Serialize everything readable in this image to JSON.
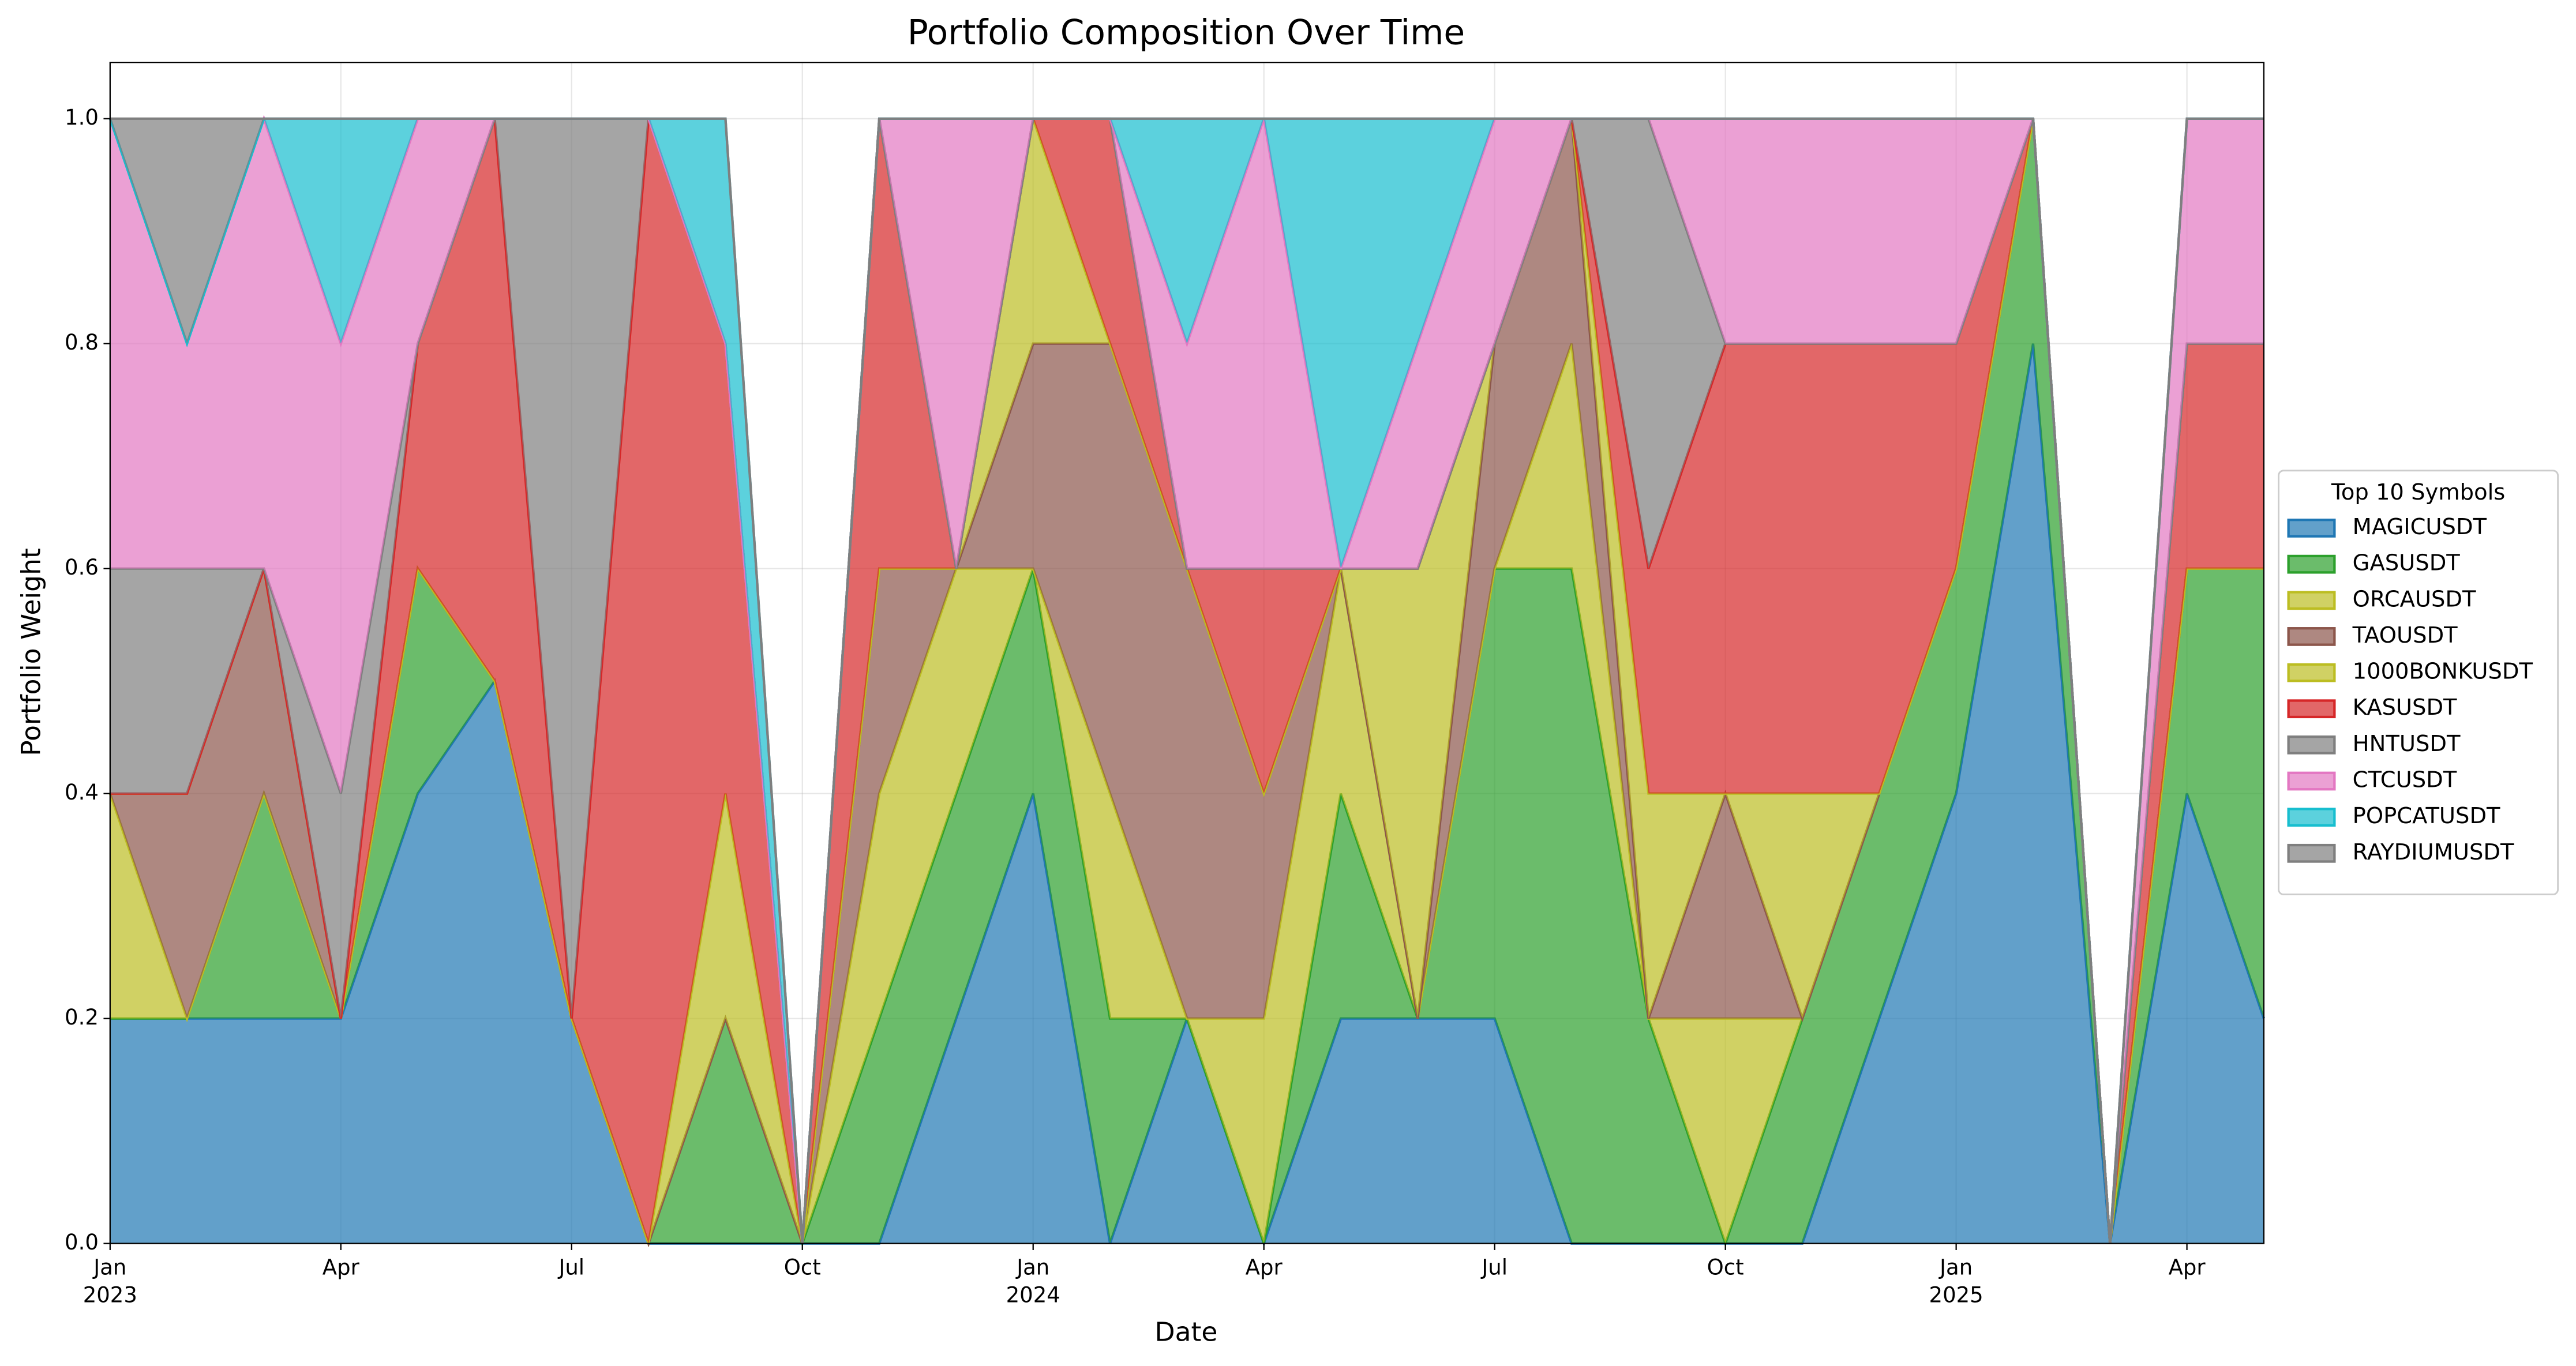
{
  "chart_data": {
    "type": "stacked_area",
    "title": "Portfolio Composition Over Time",
    "x_label": "Date",
    "y_label": "Portfolio Weight",
    "x": [
      "2023-01",
      "2023-02",
      "2023-03",
      "2023-04",
      "2023-05",
      "2023-06",
      "2023-07",
      "2023-08",
      "2023-09",
      "2023-10",
      "2023-11",
      "2023-12",
      "2024-01",
      "2024-02",
      "2024-03",
      "2024-04",
      "2024-05",
      "2024-06",
      "2024-07",
      "2024-08",
      "2024-09",
      "2024-10",
      "2024-11",
      "2024-12",
      "2025-01",
      "2025-02",
      "2025-03",
      "2025-04",
      "2025-05"
    ],
    "xlim": [
      "2023-01",
      "2025-05"
    ],
    "xticks": [
      {
        "value": "2023-01",
        "label": "Jan\n2023"
      },
      {
        "value": "2023-04",
        "label": "Apr"
      },
      {
        "value": "2023-07",
        "label": "Jul"
      },
      {
        "value": "2023-10",
        "label": "Oct"
      },
      {
        "value": "2024-01",
        "label": "Jan\n2024"
      },
      {
        "value": "2024-04",
        "label": "Apr"
      },
      {
        "value": "2024-07",
        "label": "Jul"
      },
      {
        "value": "2024-10",
        "label": "Oct"
      },
      {
        "value": "2025-01",
        "label": "Jan\n2025"
      },
      {
        "value": "2025-04",
        "label": "Apr"
      }
    ],
    "ylim": [
      0,
      1.05
    ],
    "yticks": [
      {
        "value": 0,
        "label": "0.0"
      },
      0.2,
      0.4,
      0.6,
      0.8,
      {
        "value": 1,
        "label": "1.0"
      }
    ],
    "grid": true,
    "legend_title": "Top 10 Symbols",
    "legend_loc": "center right",
    "series": [
      {
        "name": "MAGICUSDT",
        "color": "#1f77b4",
        "values": [
          0.2,
          0.2,
          0.2,
          0.2,
          0.4,
          0.5,
          0.2,
          0,
          0,
          0,
          0,
          0.2,
          0.4,
          0,
          0.2,
          0,
          0.2,
          0.2,
          0.2,
          0,
          0,
          0,
          0,
          0.2,
          0.4,
          0.8,
          0,
          0.4,
          0.2
        ]
      },
      {
        "name": "GASUSDT",
        "color": "#2ca02c",
        "values": [
          0,
          0,
          0.2,
          0,
          0.2,
          0,
          0,
          0,
          0.2,
          0,
          0.2,
          0.2,
          0.2,
          0.2,
          0,
          0,
          0.2,
          0,
          0.4,
          0.6,
          0.2,
          0,
          0.2,
          0.2,
          0.2,
          0.2,
          0,
          0.2,
          0.4
        ]
      },
      {
        "name": "ORCAUSDT",
        "color": "#bcbd22",
        "values": [
          0.2,
          0,
          0,
          0,
          0,
          0,
          0,
          0,
          0,
          0,
          0.2,
          0.2,
          0,
          0.2,
          0,
          0.2,
          0.2,
          0,
          0,
          0.2,
          0,
          0.2,
          0,
          0,
          0,
          0,
          0,
          0,
          0
        ]
      },
      {
        "name": "TAOUSDT",
        "color": "#8c564b",
        "values": [
          0,
          0.2,
          0.2,
          0,
          0,
          0,
          0,
          0,
          0,
          0,
          0.2,
          0,
          0.2,
          0.4,
          0.4,
          0.2,
          0,
          0,
          0.2,
          0.2,
          0,
          0.2,
          0,
          0,
          0,
          0,
          0,
          0,
          0
        ]
      },
      {
        "name": "1000BONKUSDT",
        "color": "#bcbd22",
        "values": [
          0,
          0,
          0,
          0,
          0,
          0,
          0,
          0,
          0.2,
          0,
          0,
          0,
          0.2,
          0,
          0,
          0,
          0,
          0.4,
          0,
          0,
          0.2,
          0,
          0.2,
          0,
          0,
          0,
          0,
          0,
          0
        ]
      },
      {
        "name": "KASUSDT",
        "color": "#d62728",
        "values": [
          0,
          0,
          0,
          0,
          0.2,
          0.5,
          0,
          1,
          0.4,
          0,
          0.4,
          0,
          0,
          0.2,
          0,
          0.2,
          0,
          0,
          0,
          0,
          0.2,
          0.4,
          0.4,
          0.4,
          0.2,
          0,
          0,
          0.2,
          0.2
        ]
      },
      {
        "name": "HNTUSDT",
        "color": "#7f7f7f",
        "values": [
          0.2,
          0.2,
          0,
          0.2,
          0,
          0,
          0.8,
          0,
          0,
          0,
          0,
          0,
          0,
          0,
          0,
          0,
          0,
          0,
          0,
          0,
          0.4,
          0,
          0,
          0,
          0,
          0,
          0,
          0,
          0
        ]
      },
      {
        "name": "CTCUSDT",
        "color": "#e377c2",
        "values": [
          0.4,
          0.2,
          0.4,
          0.4,
          0.2,
          0,
          0,
          0,
          0,
          0,
          0,
          0.4,
          0,
          0,
          0.2,
          0.4,
          0,
          0.2,
          0.2,
          0,
          0,
          0.2,
          0.2,
          0.2,
          0.2,
          0,
          0,
          0.2,
          0.2
        ]
      },
      {
        "name": "POPCATUSDT",
        "color": "#17becf",
        "values": [
          0,
          0,
          0,
          0.2,
          0,
          0,
          0,
          0,
          0.2,
          0,
          0,
          0,
          0,
          0,
          0.2,
          0,
          0.4,
          0.2,
          0,
          0,
          0,
          0,
          0,
          0,
          0,
          0,
          0,
          0,
          0
        ]
      },
      {
        "name": "RAYDIUMUSDT",
        "color": "#7f7f7f",
        "values": [
          0,
          0.2,
          0,
          0,
          0,
          0,
          0,
          0,
          0,
          0,
          0,
          0,
          0,
          0,
          0,
          0,
          0,
          0,
          0,
          0,
          0,
          0,
          0,
          0,
          0,
          0,
          0,
          0,
          0
        ]
      }
    ]
  }
}
